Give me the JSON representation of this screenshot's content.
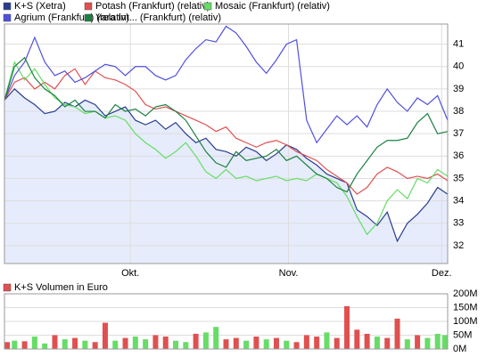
{
  "chart_data": [
    {
      "type": "line",
      "xlim": [
        0,
        44
      ],
      "xticks": [
        {
          "value": 12.5,
          "label": "Okt."
        },
        {
          "value": 28.2,
          "label": "Nov."
        },
        {
          "value": 43.4,
          "label": "Dez."
        }
      ],
      "ylim": [
        31.2,
        41.9
      ],
      "yticks": [
        32,
        33,
        34,
        35,
        36,
        37,
        38,
        39,
        40,
        41
      ],
      "grid": true,
      "area_series": 0,
      "area_color": "#e6ecfb",
      "series": [
        {
          "name": "K+S (Xetra)",
          "color": "#2a3d8f",
          "values": [
            38.5,
            39.0,
            38.6,
            38.3,
            37.9,
            38.0,
            38.4,
            38.2,
            38.5,
            38.3,
            37.8,
            38.0,
            38.2,
            37.6,
            37.4,
            37.6,
            37.2,
            37.5,
            37.0,
            36.6,
            36.8,
            36.3,
            36.2,
            36.0,
            36.4,
            36.2,
            35.8,
            36.1,
            36.5,
            36.3,
            35.9,
            35.6,
            35.2,
            35.0,
            34.8,
            33.6,
            33.3,
            32.9,
            33.5,
            32.2,
            33.0,
            33.4,
            33.9,
            34.6,
            34.3
          ]
        },
        {
          "name": "Potash (Frankfurt) (relativ)",
          "color": "#e05050",
          "values": [
            38.5,
            39.3,
            39.5,
            39.0,
            39.3,
            39.0,
            39.6,
            39.9,
            39.2,
            39.8,
            39.5,
            39.4,
            39.2,
            38.9,
            38.3,
            38.1,
            38.2,
            38.0,
            37.8,
            37.6,
            37.4,
            37.1,
            37.3,
            36.8,
            36.6,
            36.4,
            36.6,
            36.7,
            36.5,
            36.2,
            36.0,
            35.8,
            35.4,
            35.1,
            34.8,
            34.3,
            34.6,
            35.2,
            35.5,
            35.3,
            35.0,
            35.1,
            35.0,
            35.2,
            34.9
          ]
        },
        {
          "name": "Mosaic (Frankfurt) (relativ)",
          "color": "#66dd66",
          "values": [
            38.5,
            40.2,
            39.4,
            39.9,
            39.2,
            38.6,
            38.3,
            38.2,
            37.9,
            38.0,
            37.7,
            37.8,
            37.6,
            37.0,
            36.6,
            36.3,
            35.9,
            36.2,
            36.6,
            36.0,
            35.3,
            35.0,
            35.4,
            35.0,
            35.1,
            34.9,
            35.0,
            35.1,
            34.9,
            35.0,
            34.9,
            35.2,
            35.0,
            34.8,
            34.2,
            33.3,
            32.5,
            33.0,
            34.0,
            34.5,
            34.1,
            35.0,
            34.8,
            35.4,
            35.1
          ]
        },
        {
          "name": "Agrium (Frankfurt) (relativ)",
          "color": "#5050dd",
          "values": [
            38.5,
            39.6,
            40.2,
            41.3,
            40.2,
            39.6,
            39.8,
            39.3,
            39.5,
            39.8,
            40.1,
            40.0,
            39.6,
            40.0,
            40.0,
            39.6,
            39.4,
            39.6,
            40.3,
            40.8,
            41.2,
            41.1,
            41.8,
            41.5,
            40.9,
            40.2,
            39.7,
            40.3,
            41.0,
            41.2,
            37.6,
            36.6,
            37.2,
            37.8,
            37.4,
            37.8,
            37.3,
            38.3,
            39.0,
            38.4,
            38.0,
            38.6,
            38.3,
            38.7,
            37.6
          ]
        },
        {
          "name": "Yara Int... (Frankfurt) (relativ)",
          "color": "#1a8040",
          "values": [
            38.5,
            40.0,
            40.4,
            39.5,
            39.0,
            38.7,
            38.2,
            38.5,
            38.0,
            38.0,
            37.7,
            38.3,
            38.0,
            38.1,
            37.8,
            38.2,
            38.3,
            38.0,
            37.6,
            36.9,
            36.2,
            35.7,
            35.5,
            36.2,
            35.8,
            35.9,
            36.0,
            36.3,
            35.8,
            36.0,
            35.6,
            35.2,
            35.0,
            34.6,
            34.4,
            35.2,
            35.8,
            36.4,
            36.7,
            36.7,
            36.8,
            37.5,
            37.9,
            37.0,
            37.1
          ]
        }
      ]
    },
    {
      "type": "bar",
      "xlim": [
        0,
        44
      ],
      "ylim": [
        0,
        200
      ],
      "yticks": [
        {
          "value": 0,
          "label": "0M"
        },
        {
          "value": 50,
          "label": "50M"
        },
        {
          "value": 100,
          "label": "100M"
        },
        {
          "value": 150,
          "label": "150M"
        },
        {
          "value": 200,
          "label": "200M"
        }
      ],
      "grid": true,
      "series": [
        {
          "name": "K+S Volumen in Euro",
          "color": "#e05050",
          "values": [
            25,
            30,
            28,
            45,
            20,
            50,
            35,
            40,
            30,
            25,
            95,
            30,
            40,
            45,
            35,
            50,
            45,
            30,
            25,
            55,
            60,
            80,
            35,
            40,
            30,
            45,
            35,
            40,
            30,
            25,
            50,
            45,
            60,
            40,
            155,
            70,
            55,
            45,
            40,
            110,
            35,
            50,
            40,
            55,
            50
          ],
          "bar_colors": [
            "#e05050",
            "#66dd66",
            "#e05050",
            "#66dd66",
            "#66dd66",
            "#e05050",
            "#66dd66",
            "#e05050",
            "#66dd66",
            "#e05050",
            "#e05050",
            "#66dd66",
            "#e05050",
            "#66dd66",
            "#66dd66",
            "#e05050",
            "#e05050",
            "#66dd66",
            "#66dd66",
            "#e05050",
            "#66dd66",
            "#66dd66",
            "#e05050",
            "#e05050",
            "#66dd66",
            "#e05050",
            "#66dd66",
            "#e05050",
            "#66dd66",
            "#e05050",
            "#e05050",
            "#e05050",
            "#66dd66",
            "#e05050",
            "#e05050",
            "#e05050",
            "#e05050",
            "#66dd66",
            "#e05050",
            "#e05050",
            "#66dd66",
            "#e05050",
            "#66dd66",
            "#66dd66",
            "#66dd66"
          ]
        }
      ]
    }
  ]
}
